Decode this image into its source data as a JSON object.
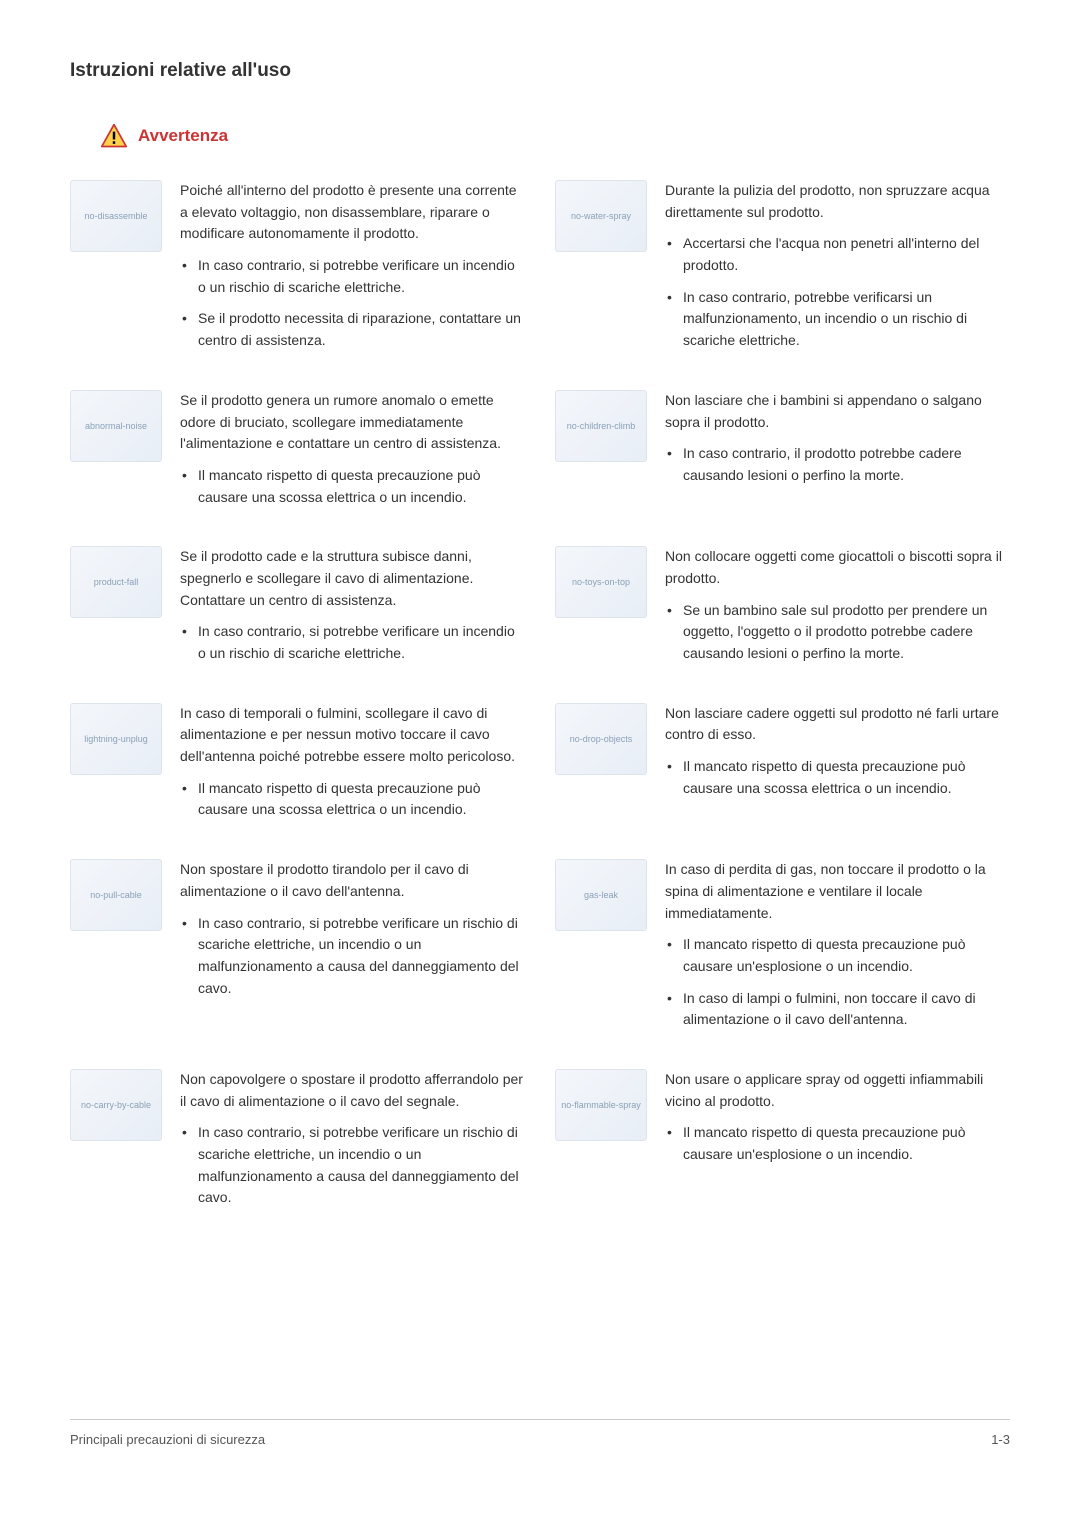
{
  "page": {
    "title": "Istruzioni relative all'uso",
    "warning_label": "Avvertenza",
    "footer_left": "Principali precauzioni di sicurezza",
    "footer_right": "1-3",
    "warning_triangle_colors": {
      "border": "#cc3333",
      "fill": "#ffd24d",
      "mark": "#000000"
    }
  },
  "rows": [
    {
      "left": {
        "thumb": "no-disassemble",
        "intro": "Poiché all'interno del prodotto è presente una corrente a elevato voltaggio, non disassemblare, riparare o modificare autonomamente il prodotto.",
        "bullets": [
          "In caso contrario, si potrebbe verificare un incendio o un rischio di scariche elettriche.",
          "Se il prodotto necessita di riparazione, contattare un centro di assistenza."
        ]
      },
      "right": {
        "thumb": "no-water-spray",
        "intro": "Durante la pulizia del prodotto, non spruzzare acqua direttamente sul prodotto.",
        "bullets": [
          "Accertarsi che l'acqua non penetri all'interno del prodotto.",
          "In caso contrario, potrebbe verificarsi un malfunzionamento, un incendio o un rischio di scariche elettriche."
        ]
      }
    },
    {
      "left": {
        "thumb": "abnormal-noise",
        "intro": "Se il prodotto genera un rumore anomalo o emette odore di bruciato, scollegare immediatamente l'alimentazione e contattare un centro di assistenza.",
        "bullets": [
          "Il mancato rispetto di questa precauzione può causare una scossa elettrica o un incendio."
        ]
      },
      "right": {
        "thumb": "no-children-climb",
        "intro": "Non lasciare che i bambini si appendano o salgano sopra il prodotto.",
        "bullets": [
          "In caso contrario, il prodotto potrebbe cadere causando lesioni o perfino la morte."
        ]
      }
    },
    {
      "left": {
        "thumb": "product-fall",
        "intro": "Se il prodotto cade e la struttura subisce danni, spegnerlo e scollegare il cavo di alimentazione. Contattare un centro di assistenza.",
        "bullets": [
          "In caso contrario, si potrebbe verificare un incendio o un rischio di scariche elettriche."
        ]
      },
      "right": {
        "thumb": "no-toys-on-top",
        "intro": "Non collocare oggetti come giocattoli o biscotti sopra il prodotto.",
        "bullets": [
          "Se un bambino sale sul prodotto per prendere un oggetto, l'oggetto o il prodotto potrebbe cadere causando lesioni o perfino la morte."
        ]
      }
    },
    {
      "left": {
        "thumb": "lightning-unplug",
        "intro": "In caso di temporali o fulmini, scollegare il cavo di alimentazione e per nessun motivo toccare il cavo dell'antenna poiché potrebbe essere molto pericoloso.",
        "bullets": [
          "Il mancato rispetto di questa precauzione può causare una scossa elettrica o un incendio."
        ]
      },
      "right": {
        "thumb": "no-drop-objects",
        "intro": "Non lasciare cadere oggetti sul prodotto né farli urtare contro di esso.",
        "bullets": [
          "Il mancato rispetto di questa precauzione può causare una scossa elettrica o un incendio."
        ]
      }
    },
    {
      "left": {
        "thumb": "no-pull-cable",
        "intro": "Non spostare il prodotto tirandolo per il cavo di alimentazione o il cavo dell'antenna.",
        "bullets": [
          "In caso contrario, si potrebbe verificare un rischio di scariche elettriche, un incendio o un malfunzionamento a causa del danneggiamento del cavo."
        ]
      },
      "right": {
        "thumb": "gas-leak",
        "intro": "In caso di perdita di gas, non toccare il prodotto o la spina di alimentazione e ventilare il locale immediatamente.",
        "bullets": [
          "Il mancato rispetto di questa precauzione può causare un'esplosione o un incendio.",
          "In caso di lampi o fulmini, non toccare il cavo di alimentazione o il cavo dell'antenna."
        ]
      }
    },
    {
      "left": {
        "thumb": "no-carry-by-cable",
        "intro": "Non capovolgere o spostare il prodotto afferrandolo per il cavo di alimentazione o il cavo del segnale.",
        "bullets": [
          "In caso contrario, si potrebbe verificare un rischio di scariche elettriche, un incendio o un malfunzionamento a causa del danneggiamento del cavo."
        ]
      },
      "right": {
        "thumb": "no-flammable-spray",
        "intro": "Non usare o applicare spray od oggetti infiammabili vicino al prodotto.",
        "bullets": [
          "Il mancato rispetto di questa precauzione può causare un'esplosione o un incendio."
        ]
      }
    }
  ]
}
